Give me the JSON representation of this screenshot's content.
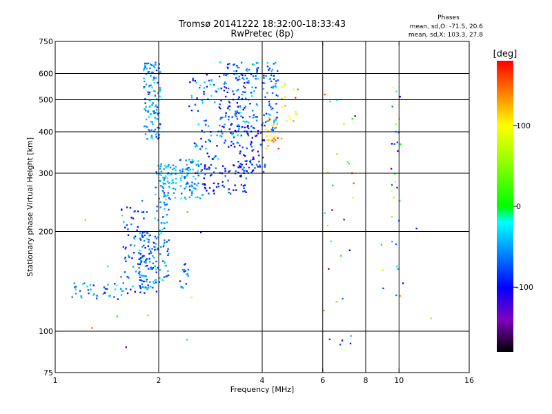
{
  "chart_data": {
    "type": "scatter",
    "title": "Tromsø 20141222 18:32:00-18:33:43",
    "subtitle": "RwPretec (8p)",
    "legend_title": "Phases",
    "stats_line1": "mean, sd,O: -71.5, 20.6",
    "stats_line2": "mean, sd,X: 103.3, 27.8",
    "xlabel": "Frequency [MHz]",
    "ylabel": "Stationary phase Virtual Height [km]",
    "x_scale": "log",
    "y_scale": "log",
    "xlim": [
      1,
      16
    ],
    "ylim": [
      75,
      750
    ],
    "x_ticks": [
      1,
      2,
      4,
      6,
      8,
      10,
      16
    ],
    "x_tick_labels": [
      "1",
      "2",
      "4",
      "6",
      "8",
      "10",
      "16"
    ],
    "y_ticks": [
      75,
      100,
      200,
      300,
      400,
      500,
      600,
      750
    ],
    "y_tick_labels": [
      "75",
      "100",
      "200",
      "300",
      "400",
      "500",
      "600",
      "750"
    ],
    "x_grid": [
      2,
      4,
      6,
      8,
      10
    ],
    "y_grid": [
      100,
      200,
      300,
      400,
      500,
      600
    ],
    "colorbar": {
      "label": "[deg]",
      "range": [
        -180,
        180
      ],
      "ticks": [
        100,
        0,
        -100
      ],
      "tick_labels": [
        "100",
        "0",
        "-100"
      ],
      "stops": [
        {
          "value": -180,
          "color": "#000000"
        },
        {
          "value": -140,
          "color": "#8000c0"
        },
        {
          "value": -100,
          "color": "#0000ff"
        },
        {
          "value": -50,
          "color": "#00a0ff"
        },
        {
          "value": -20,
          "color": "#00ffff"
        },
        {
          "value": 0,
          "color": "#00ff00"
        },
        {
          "value": 60,
          "color": "#a0ff00"
        },
        {
          "value": 100,
          "color": "#ffff00"
        },
        {
          "value": 140,
          "color": "#ff8000"
        },
        {
          "value": 180,
          "color": "#ff0000"
        }
      ]
    },
    "clusters": [
      {
        "f": [
          1.1,
          1.6
        ],
        "h": [
          125,
          140
        ],
        "ph": [
          -100,
          -20
        ],
        "n": 40
      },
      {
        "f": [
          1.55,
          1.85
        ],
        "h": [
          130,
          250
        ],
        "ph": [
          -110,
          -40
        ],
        "n": 70
      },
      {
        "f": [
          1.75,
          1.98
        ],
        "h": [
          130,
          200
        ],
        "ph": [
          -100,
          -30
        ],
        "n": 90
      },
      {
        "f": [
          1.8,
          2.02
        ],
        "h": [
          380,
          650
        ],
        "ph": [
          -90,
          -20
        ],
        "n": 120
      },
      {
        "f": [
          1.95,
          2.15
        ],
        "h": [
          140,
          320
        ],
        "ph": [
          -90,
          -20
        ],
        "n": 80
      },
      {
        "f": [
          2.0,
          2.25
        ],
        "h": [
          250,
          320
        ],
        "ph": [
          -60,
          -20
        ],
        "n": 50
      },
      {
        "f": [
          2.3,
          2.7
        ],
        "h": [
          250,
          330
        ],
        "ph": [
          -80,
          -20
        ],
        "n": 80
      },
      {
        "f": [
          2.3,
          2.45
        ],
        "h": [
          135,
          160
        ],
        "ph": [
          -90,
          -40
        ],
        "n": 15
      },
      {
        "f": [
          2.45,
          3.05
        ],
        "h": [
          330,
          600
        ],
        "ph": [
          -110,
          -20
        ],
        "n": 70
      },
      {
        "f": [
          3.0,
          3.4
        ],
        "h": [
          360,
          650
        ],
        "ph": [
          -120,
          -30
        ],
        "n": 80
      },
      {
        "f": [
          3.3,
          3.9
        ],
        "h": [
          400,
          650
        ],
        "ph": [
          -110,
          -20
        ],
        "n": 90
      },
      {
        "f": [
          2.7,
          3.6
        ],
        "h": [
          260,
          320
        ],
        "ph": [
          -120,
          -60
        ],
        "n": 70
      },
      {
        "f": [
          3.4,
          4.1
        ],
        "h": [
          300,
          420
        ],
        "ph": [
          -130,
          -60
        ],
        "n": 80
      },
      {
        "f": [
          4.0,
          4.45
        ],
        "h": [
          400,
          650
        ],
        "ph": [
          -100,
          -30
        ],
        "n": 60
      },
      {
        "f": [
          4.1,
          4.6
        ],
        "h": [
          350,
          450
        ],
        "ph": [
          100,
          170
        ],
        "n": 25
      },
      {
        "f": [
          4.5,
          5.2
        ],
        "h": [
          420,
          560
        ],
        "ph": [
          60,
          170
        ],
        "n": 15
      },
      {
        "f": [
          6.0,
          7.5
        ],
        "h": [
          90,
          600
        ],
        "ph": [
          -150,
          170
        ],
        "n": 30
      },
      {
        "f": [
          9.5,
          10.1
        ],
        "h": [
          120,
          600
        ],
        "ph": [
          -120,
          140
        ],
        "n": 25
      },
      {
        "f": [
          8.5,
          12.5
        ],
        "h": [
          100,
          680
        ],
        "ph": [
          -140,
          160
        ],
        "n": 10
      },
      {
        "f": [
          1.2,
          2.9
        ],
        "h": [
          80,
          280
        ],
        "ph": [
          -150,
          150
        ],
        "n": 12
      }
    ]
  }
}
